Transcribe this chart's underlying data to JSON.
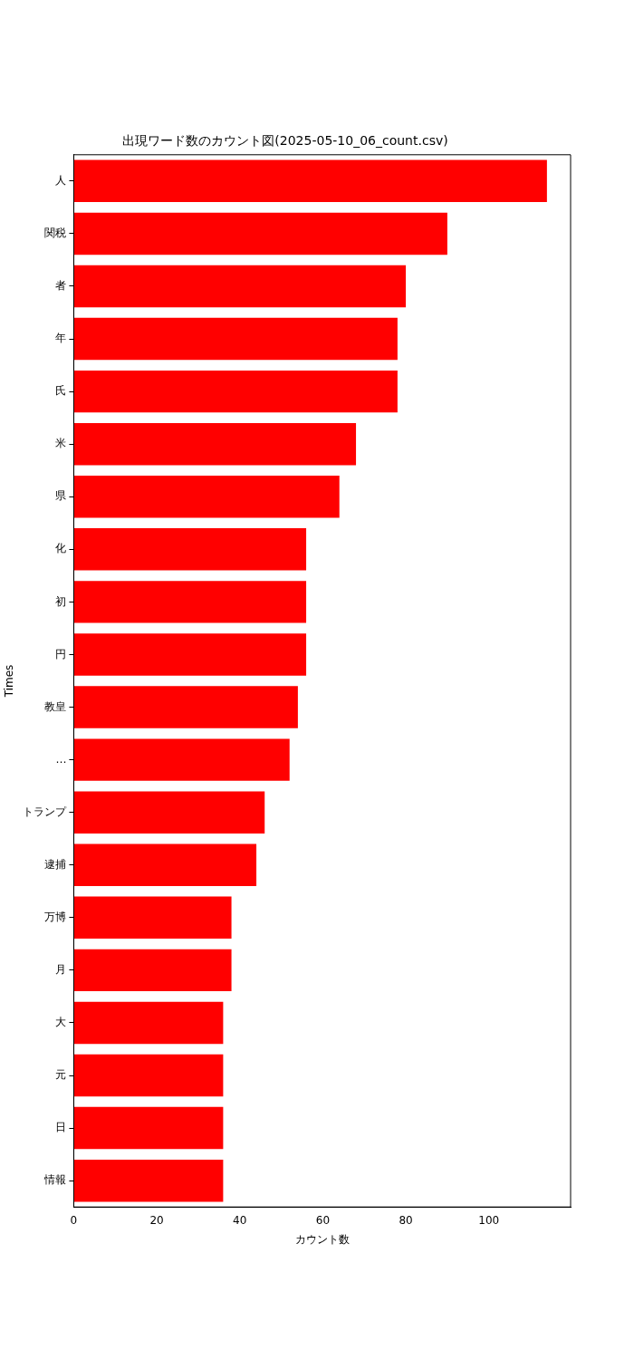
{
  "chart_data": {
    "type": "bar",
    "orientation": "horizontal",
    "title": "出現ワード数のカウント図(2025-05-10_06_count.csv)",
    "xlabel": "カウント数",
    "ylabel": "Times",
    "categories": [
      "人",
      "関税",
      "者",
      "年",
      "氏",
      "米",
      "県",
      "化",
      "初",
      "円",
      "教皇",
      "…",
      "トランプ",
      "逮捕",
      "万博",
      "月",
      "大",
      "元",
      "日",
      "情報"
    ],
    "values": [
      114,
      90,
      80,
      78,
      78,
      68,
      64,
      56,
      56,
      56,
      54,
      52,
      46,
      44,
      38,
      38,
      36,
      36,
      36,
      36
    ],
    "color": "#ff0000",
    "xlim": [
      0,
      119.7
    ],
    "xticks": [
      0,
      20,
      40,
      60,
      80,
      100
    ],
    "grid": false,
    "legend": false
  }
}
